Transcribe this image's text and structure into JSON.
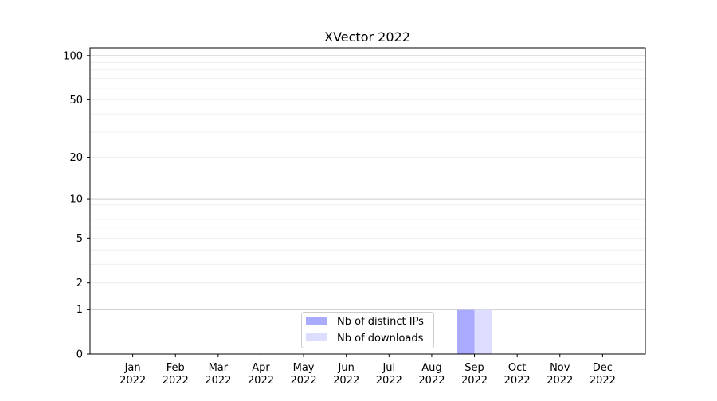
{
  "chart_data": {
    "type": "bar",
    "title": "XVector 2022",
    "xlabel": "",
    "ylabel": "",
    "y_scale": "log(y+1)",
    "ylim": [
      0,
      113
    ],
    "categories": [
      "Jan\n2022",
      "Feb\n2022",
      "Mar\n2022",
      "Apr\n2022",
      "May\n2022",
      "Jun\n2022",
      "Jul\n2022",
      "Aug\n2022",
      "Sep\n2022",
      "Oct\n2022",
      "Nov\n2022",
      "Dec\n2022"
    ],
    "ytick_labels": [
      "0",
      "1",
      "2",
      "5",
      "10",
      "20",
      "50",
      "100"
    ],
    "yticks": [
      0,
      1,
      2,
      5,
      10,
      20,
      50,
      100
    ],
    "grid": true,
    "legend_position": "lower center",
    "series": [
      {
        "name": "Nb of distinct IPs",
        "color": "#aaaaff",
        "values": [
          0,
          0,
          0,
          0,
          0,
          0,
          0,
          0,
          1,
          0,
          0,
          0
        ]
      },
      {
        "name": "Nb of downloads",
        "color": "#ddddff",
        "values": [
          0,
          0,
          0,
          0,
          0,
          0,
          0,
          0,
          1,
          0,
          0,
          0
        ]
      }
    ]
  }
}
